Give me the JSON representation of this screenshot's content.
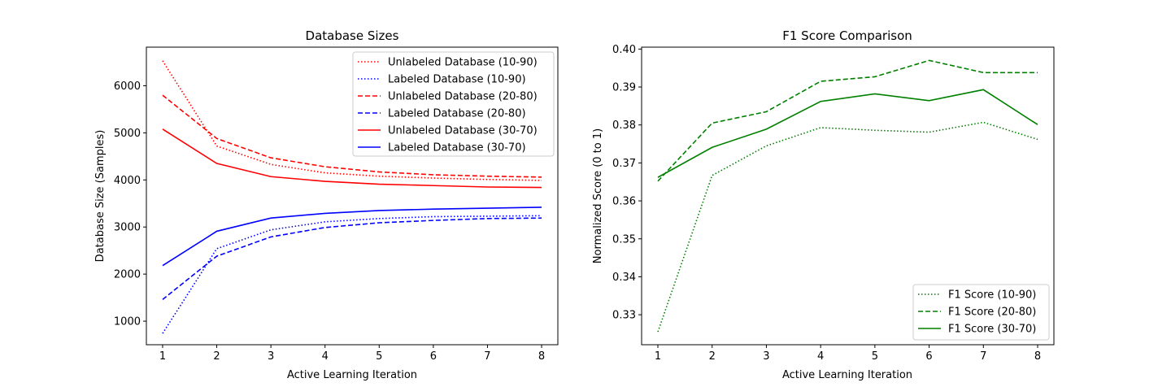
{
  "chart_data": [
    {
      "type": "line",
      "title": "Database Sizes",
      "xlabel": "Active Learning Iteration",
      "ylabel": "Database Size (Samples)",
      "x": [
        1,
        2,
        3,
        4,
        5,
        6,
        7,
        8
      ],
      "xticks": [
        "1",
        "2",
        "3",
        "4",
        "5",
        "6",
        "7",
        "8"
      ],
      "yticks": [
        "1000",
        "2000",
        "3000",
        "4000",
        "5000",
        "6000"
      ],
      "xlim": [
        0.7,
        8.3
      ],
      "ylim": [
        500,
        6820
      ],
      "grid": false,
      "legend_position": "upper-right",
      "series": [
        {
          "name": "Unlabeled Database (10-90)",
          "color": "#ff0000",
          "dash": "dotted",
          "values": [
            6530,
            4720,
            4330,
            4150,
            4080,
            4040,
            4010,
            3990
          ]
        },
        {
          "name": "Labeled Database (10-90)",
          "color": "#0000ff",
          "dash": "dotted",
          "values": [
            740,
            2540,
            2940,
            3110,
            3180,
            3220,
            3230,
            3240
          ]
        },
        {
          "name": "Unlabeled Database (20-80)",
          "color": "#ff0000",
          "dash": "dashed",
          "values": [
            5800,
            4880,
            4470,
            4280,
            4170,
            4110,
            4080,
            4060
          ]
        },
        {
          "name": "Labeled Database (20-80)",
          "color": "#0000ff",
          "dash": "dashed",
          "values": [
            1460,
            2380,
            2790,
            2990,
            3090,
            3140,
            3180,
            3190
          ]
        },
        {
          "name": "Unlabeled Database (30-70)",
          "color": "#ff0000",
          "dash": "solid",
          "values": [
            5080,
            4350,
            4070,
            3970,
            3910,
            3880,
            3850,
            3840
          ]
        },
        {
          "name": "Labeled Database (30-70)",
          "color": "#0000ff",
          "dash": "solid",
          "values": [
            2180,
            2910,
            3190,
            3290,
            3350,
            3380,
            3400,
            3420
          ]
        }
      ]
    },
    {
      "type": "line",
      "title": "F1 Score Comparison",
      "xlabel": "Active Learning Iteration",
      "ylabel": "Normalized Score (0 to 1)",
      "x": [
        1,
        2,
        3,
        4,
        5,
        6,
        7,
        8
      ],
      "xticks": [
        "1",
        "2",
        "3",
        "4",
        "5",
        "6",
        "7",
        "8"
      ],
      "yticks": [
        "0.33",
        "0.34",
        "0.35",
        "0.36",
        "0.37",
        "0.38",
        "0.39",
        "0.40"
      ],
      "xlim": [
        0.7,
        8.3
      ],
      "ylim": [
        0.3221,
        0.4005
      ],
      "grid": false,
      "legend_position": "lower-right",
      "series": [
        {
          "name": "F1 Score (10-90)",
          "color": "#008000",
          "dash": "dotted",
          "values": [
            0.3255,
            0.3667,
            0.3745,
            0.3793,
            0.3786,
            0.3781,
            0.3807,
            0.3762
          ]
        },
        {
          "name": "F1 Score (20-80)",
          "color": "#008000",
          "dash": "dashed",
          "values": [
            0.3652,
            0.3805,
            0.3835,
            0.3915,
            0.3927,
            0.397,
            0.3938,
            0.3938
          ]
        },
        {
          "name": "F1 Score (30-70)",
          "color": "#008000",
          "dash": "solid",
          "values": [
            0.3662,
            0.3741,
            0.3789,
            0.3862,
            0.3882,
            0.3864,
            0.3893,
            0.3801
          ]
        }
      ]
    }
  ]
}
